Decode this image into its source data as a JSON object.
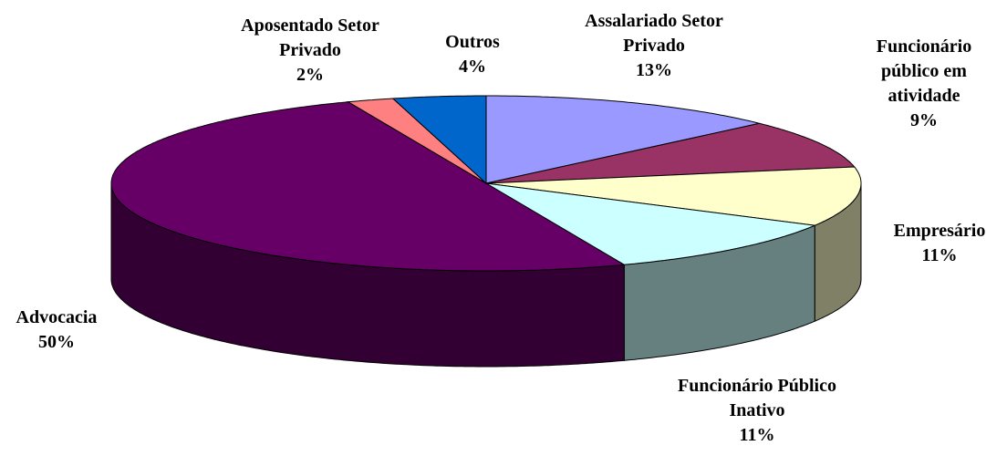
{
  "chart_data": {
    "type": "pie3d",
    "categories": [
      "Assalariado Setor Privado",
      "Funcionário público em atividade",
      "Empresário",
      "Funcionário Público Inativo",
      "Advocacia",
      "Aposentado Setor Privado",
      "Outros"
    ],
    "values": [
      13,
      9,
      11,
      11,
      50,
      2,
      4
    ],
    "value_labels": [
      "13%",
      "9%",
      "11%",
      "11%",
      "50%",
      "2%",
      "4%"
    ],
    "colors": [
      "#9999ff",
      "#993366",
      "#ffffcc",
      "#ccffff",
      "#660066",
      "#ff8080",
      "#0066cc"
    ]
  }
}
